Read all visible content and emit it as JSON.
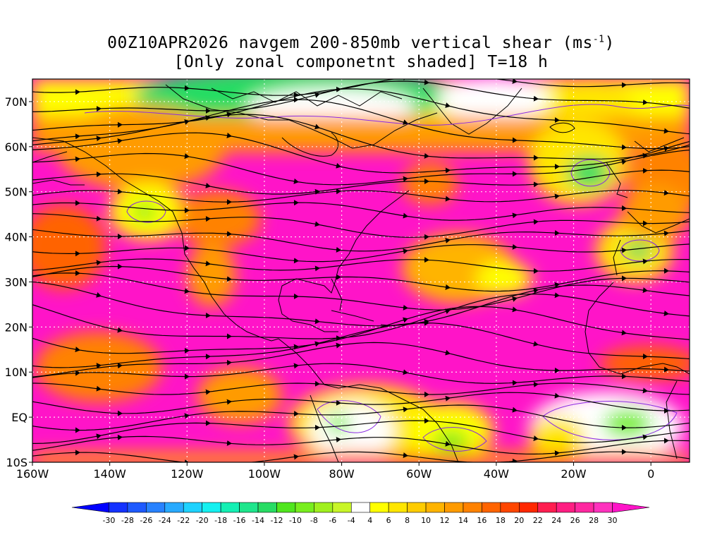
{
  "title": {
    "line1_prefix": "00Z10APR2026 navgem 200-850mb vertical shear (ms",
    "line1_sup": "-1",
    "line1_suffix": ")",
    "line2": "[Only zonal componetnt shaded] T=18 h"
  },
  "map": {
    "lon_range": [
      -160,
      10
    ],
    "lat_range": [
      -10,
      75
    ],
    "lat_ticks": [
      {
        "value": 70,
        "label": "70N"
      },
      {
        "value": 60,
        "label": "60N"
      },
      {
        "value": 50,
        "label": "50N"
      },
      {
        "value": 40,
        "label": "40N"
      },
      {
        "value": 30,
        "label": "30N"
      },
      {
        "value": 20,
        "label": "20N"
      },
      {
        "value": 10,
        "label": "10N"
      },
      {
        "value": 0,
        "label": "EQ"
      },
      {
        "value": -10,
        "label": "10S"
      }
    ],
    "lon_ticks": [
      {
        "value": -160,
        "label": "160W"
      },
      {
        "value": -140,
        "label": "140W"
      },
      {
        "value": -120,
        "label": "120W"
      },
      {
        "value": -100,
        "label": "100W"
      },
      {
        "value": -80,
        "label": "80W"
      },
      {
        "value": -60,
        "label": "60W"
      },
      {
        "value": -40,
        "label": "40W"
      },
      {
        "value": -20,
        "label": "20W"
      },
      {
        "value": 0,
        "label": "0"
      }
    ],
    "grid": "dotted",
    "shaded_field": "zonal vertical shear (ms-1)",
    "overlay": "streamlines of total shear"
  },
  "colorbar": {
    "labels": [
      "-30",
      "-28",
      "-26",
      "-24",
      "-22",
      "-20",
      "-18",
      "-16",
      "-14",
      "-12",
      "-10",
      "-8",
      "-6",
      "-4",
      "4",
      "6",
      "8",
      "10",
      "12",
      "14",
      "16",
      "18",
      "20",
      "22",
      "24",
      "26",
      "28",
      "30"
    ],
    "colors": [
      "#0000ff",
      "#1432ff",
      "#1e5aff",
      "#2882ff",
      "#28aaff",
      "#1ed2ff",
      "#14f0f0",
      "#14f0b4",
      "#1ee68c",
      "#28dc64",
      "#50e61e",
      "#78ee1e",
      "#a0f01e",
      "#c8f528",
      "#ffffff",
      "#ffff00",
      "#ffe600",
      "#ffcc00",
      "#ffb400",
      "#ff9b00",
      "#ff8200",
      "#ff6400",
      "#ff4600",
      "#ff2800",
      "#ff1e50",
      "#ff1e82",
      "#ff28a0",
      "#ff32be",
      "#ff14c8"
    ]
  },
  "colors": {
    "high_shear": "#ff14c8",
    "coast": "#000000",
    "zero_contour": "#8b2be2"
  }
}
